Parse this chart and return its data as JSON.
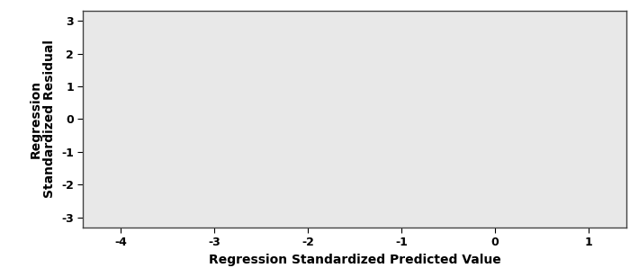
{
  "xlabel": "Regression Standardized Predicted Value",
  "ylabel": "Regression\nStandardized Residual",
  "xlim": [
    -4.4,
    1.4
  ],
  "ylim": [
    -3.3,
    3.3
  ],
  "xticks": [
    -4,
    -3,
    -2,
    -1,
    0,
    1
  ],
  "yticks": [
    -3,
    -2,
    -1,
    0,
    1,
    2,
    3
  ],
  "plot_bg_color": "#e8e8e8",
  "fig_bg_color": "#ffffff",
  "axis_linecolor": "#444444",
  "xlabel_fontsize": 10,
  "ylabel_fontsize": 10,
  "tick_fontsize": 9,
  "tick_fontweight": "bold",
  "label_fontweight": "bold"
}
